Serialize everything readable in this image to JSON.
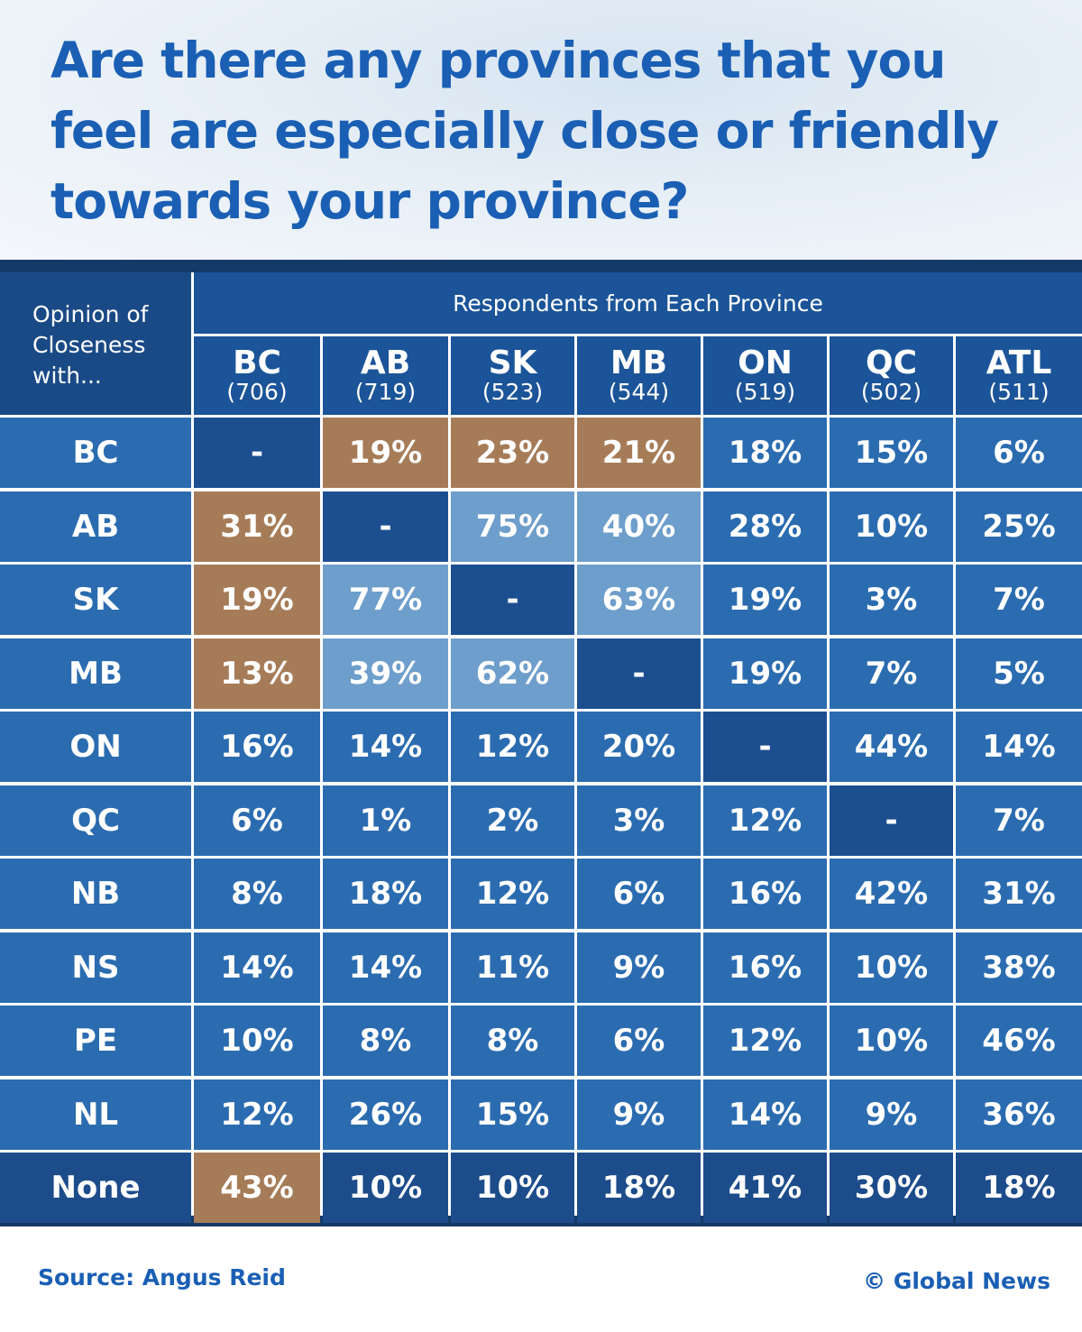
{
  "title": "Are there any provinces that you feel are especially close or friendly towards your province?",
  "table": {
    "corner": "Opinion of Closeness with...",
    "group_header": "Respondents from Each Province",
    "columns": [
      {
        "name": "BC",
        "n": "(706)"
      },
      {
        "name": "AB",
        "n": "(719)"
      },
      {
        "name": "SK",
        "n": "(523)"
      },
      {
        "name": "MB",
        "n": "(544)"
      },
      {
        "name": "ON",
        "n": "(519)"
      },
      {
        "name": "QC",
        "n": "(502)"
      },
      {
        "name": "ATL",
        "n": "(511)"
      }
    ],
    "colors": {
      "tan": "#a67c58",
      "light": "#6e9ecb"
    },
    "rows": [
      {
        "label": "BC",
        "cells": [
          "-",
          "19%",
          "23%",
          "21%",
          "18%",
          "15%",
          "6%"
        ],
        "tan": [
          1,
          2,
          3
        ],
        "light": []
      },
      {
        "label": "AB",
        "cells": [
          "31%",
          "-",
          "75%",
          "40%",
          "28%",
          "10%",
          "25%"
        ],
        "tan": [
          0
        ],
        "light": [
          2,
          3
        ]
      },
      {
        "label": "SK",
        "cells": [
          "19%",
          "77%",
          "-",
          "63%",
          "19%",
          "3%",
          "7%"
        ],
        "tan": [
          0
        ],
        "light": [
          1,
          3
        ]
      },
      {
        "label": "MB",
        "cells": [
          "13%",
          "39%",
          "62%",
          "-",
          "19%",
          "7%",
          "5%"
        ],
        "tan": [
          0
        ],
        "light": [
          1,
          2
        ]
      },
      {
        "label": "ON",
        "cells": [
          "16%",
          "14%",
          "12%",
          "20%",
          "-",
          "44%",
          "14%"
        ],
        "tan": [],
        "light": []
      },
      {
        "label": "QC",
        "cells": [
          "6%",
          "1%",
          "2%",
          "3%",
          "12%",
          "-",
          "7%"
        ],
        "tan": [],
        "light": []
      },
      {
        "label": "NB",
        "cells": [
          "8%",
          "18%",
          "12%",
          "6%",
          "16%",
          "42%",
          "31%"
        ],
        "tan": [],
        "light": []
      },
      {
        "label": "NS",
        "cells": [
          "14%",
          "14%",
          "11%",
          "9%",
          "16%",
          "10%",
          "38%"
        ],
        "tan": [],
        "light": []
      },
      {
        "label": "PE",
        "cells": [
          "10%",
          "8%",
          "8%",
          "6%",
          "12%",
          "10%",
          "46%"
        ],
        "tan": [],
        "light": []
      },
      {
        "label": "NL",
        "cells": [
          "12%",
          "26%",
          "15%",
          "9%",
          "14%",
          "9%",
          "36%"
        ],
        "tan": [],
        "light": []
      },
      {
        "label": "None",
        "cells": [
          "43%",
          "10%",
          "10%",
          "18%",
          "41%",
          "30%",
          "18%"
        ],
        "tan": [
          0
        ],
        "light": []
      }
    ]
  },
  "source": "Source: Angus Reid",
  "credit": "© Global News"
}
